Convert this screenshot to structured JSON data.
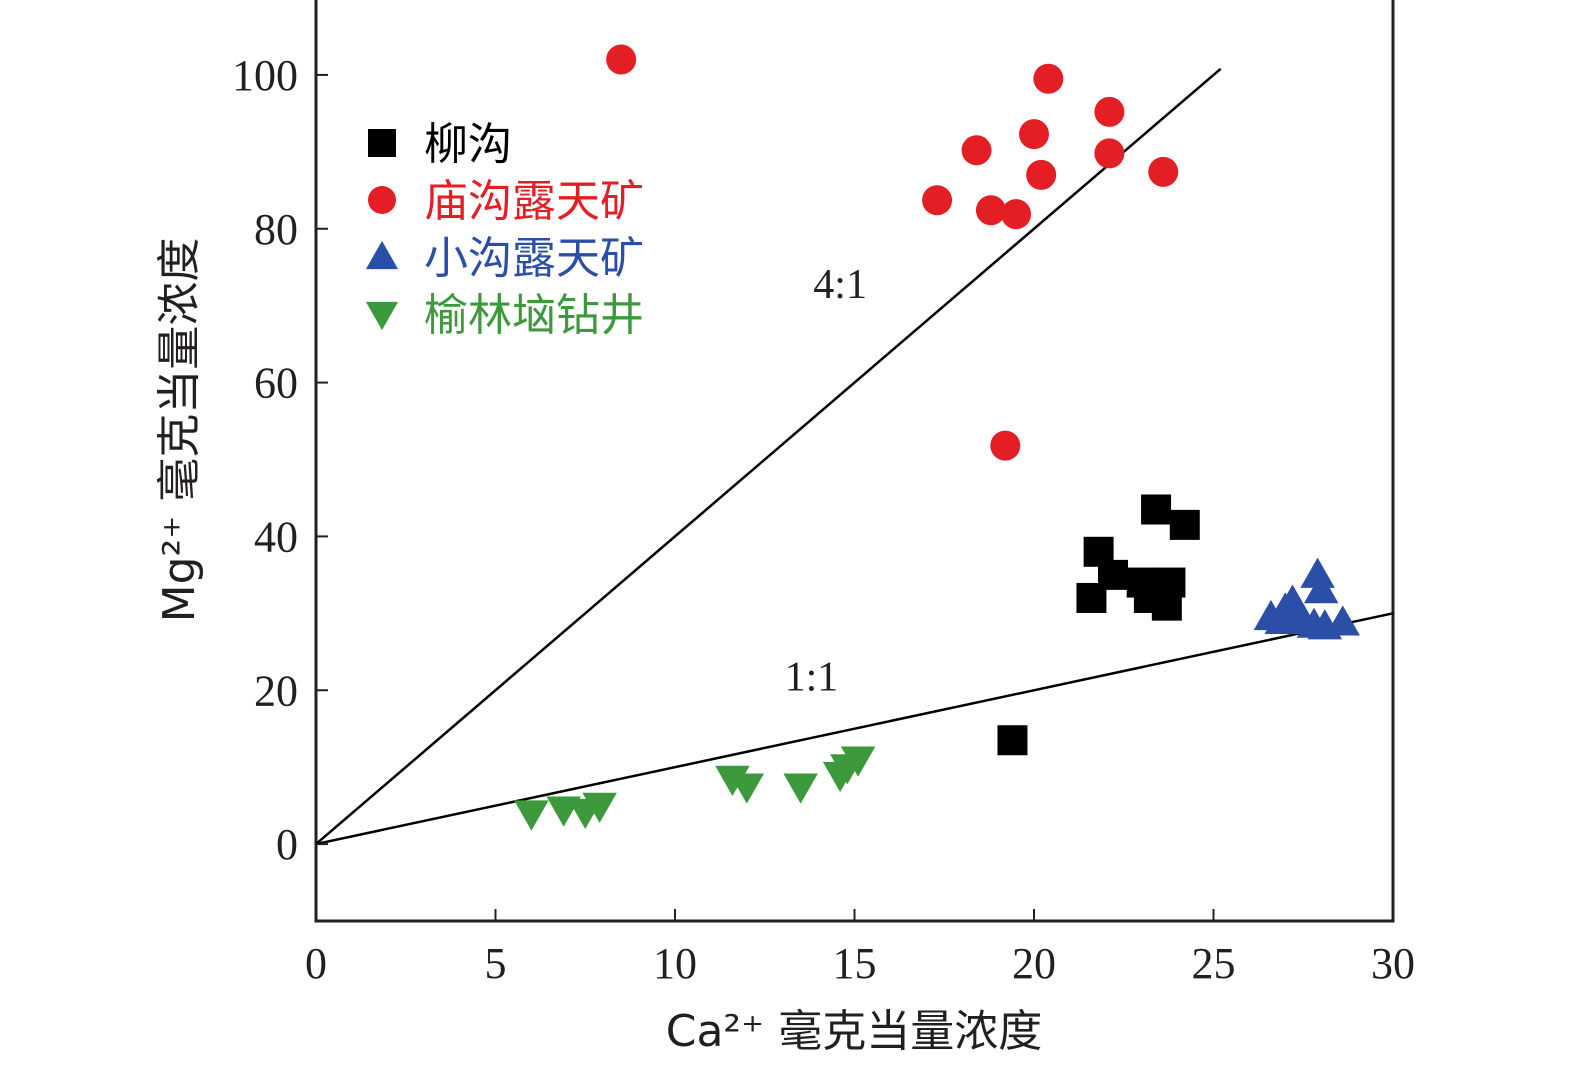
{
  "chart_data": {
    "type": "scatter",
    "xlabel": "Ca²⁺ 毫克当量浓度",
    "ylabel": "Mg²⁺ 毫克当量浓度",
    "xlim": [
      0,
      30
    ],
    "ylim": [
      -10,
      110
    ],
    "xticks": [
      0,
      5,
      10,
      15,
      20,
      25,
      30
    ],
    "yticks": [
      0,
      20,
      40,
      60,
      80,
      100
    ],
    "grid": false,
    "legend_position": "top-left",
    "reference_lines": [
      {
        "label": "4:1",
        "slope": 4,
        "x_end": 25.2,
        "label_x": 14.6,
        "label_y": 71
      },
      {
        "label": "1:1",
        "slope": 1,
        "x_end": 30,
        "label_x": 13.8,
        "label_y": 20
      }
    ],
    "series": [
      {
        "name": "柳沟",
        "marker": "square",
        "color": "#000000",
        "points": [
          [
            21.8,
            38
          ],
          [
            21.6,
            32
          ],
          [
            22.2,
            35
          ],
          [
            23.4,
            43.5
          ],
          [
            24.2,
            41.5
          ],
          [
            23,
            34
          ],
          [
            23.2,
            32
          ],
          [
            23.8,
            34
          ],
          [
            23.7,
            31
          ],
          [
            19.4,
            13.5
          ]
        ]
      },
      {
        "name": "庙沟露天矿",
        "marker": "circle",
        "color": "#e31e24",
        "points": [
          [
            8.5,
            102
          ],
          [
            20.4,
            99.5
          ],
          [
            22.1,
            95.2
          ],
          [
            20,
            92.3
          ],
          [
            18.4,
            90.2
          ],
          [
            22.1,
            89.8
          ],
          [
            20.2,
            87
          ],
          [
            23.6,
            87.4
          ],
          [
            17.3,
            83.7
          ],
          [
            18.8,
            82.4
          ],
          [
            19.5,
            81.9
          ],
          [
            19.2,
            51.8
          ]
        ]
      },
      {
        "name": "小沟露天矿",
        "marker": "triangle-up",
        "color": "#2b4fa6",
        "points": [
          [
            27.9,
            35
          ],
          [
            28,
            33
          ],
          [
            26.6,
            29.5
          ],
          [
            27,
            30.5
          ],
          [
            27.2,
            31.5
          ],
          [
            27.5,
            29
          ],
          [
            27.8,
            28.5
          ],
          [
            28.1,
            28.3
          ],
          [
            28.6,
            28.8
          ],
          [
            26.9,
            29
          ]
        ]
      },
      {
        "name": "榆林垴钻井",
        "marker": "triangle-down",
        "color": "#3c9a3c",
        "points": [
          [
            6,
            4
          ],
          [
            6.9,
            4.5
          ],
          [
            7.5,
            4.2
          ],
          [
            7.9,
            5
          ],
          [
            11.6,
            8.5
          ],
          [
            12,
            7.5
          ],
          [
            13.5,
            7.5
          ],
          [
            14.6,
            9
          ],
          [
            14.8,
            10
          ],
          [
            15.1,
            11
          ]
        ]
      }
    ]
  }
}
